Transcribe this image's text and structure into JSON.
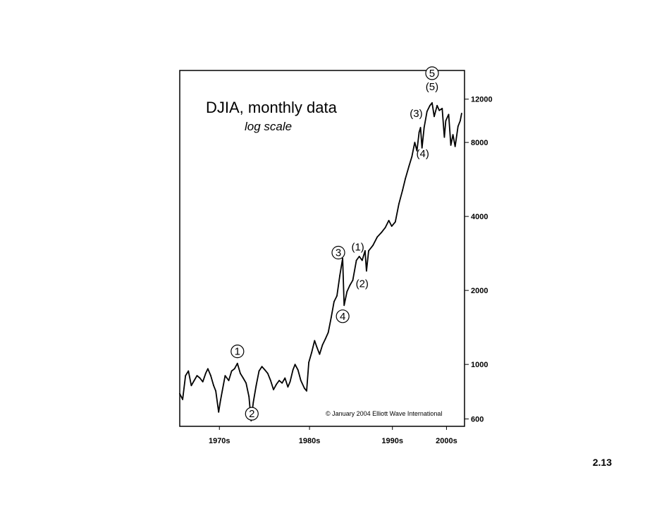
{
  "slide": {
    "number": "2.13"
  },
  "chart_data": {
    "type": "line",
    "title": "DJIA, monthly data",
    "subtitle": "log scale",
    "copyright": "© January 2004 Elliott Wave International",
    "y_scale": "log",
    "ylim": [
      560,
      15700
    ],
    "xlim": [
      1965,
      2004.5
    ],
    "y_ticks": [
      {
        "value": 600,
        "label": "600"
      },
      {
        "value": 1000,
        "label": "1000"
      },
      {
        "value": 2000,
        "label": "2000"
      },
      {
        "value": 4000,
        "label": "4000"
      },
      {
        "value": 8000,
        "label": "8000"
      },
      {
        "value": 12000,
        "label": "12000"
      }
    ],
    "x_ticks": [
      {
        "value": 1970.5,
        "label": "1970s"
      },
      {
        "value": 1983,
        "label": "1980s"
      },
      {
        "value": 1994.5,
        "label": "1990s"
      },
      {
        "value": 2002,
        "label": "2000s"
      }
    ],
    "series": [
      {
        "color": "#000000",
        "points": [
          [
            1965.0,
            760
          ],
          [
            1965.4,
            720
          ],
          [
            1965.8,
            900
          ],
          [
            1966.2,
            940
          ],
          [
            1966.6,
            820
          ],
          [
            1967.0,
            860
          ],
          [
            1967.4,
            900
          ],
          [
            1967.8,
            880
          ],
          [
            1968.2,
            850
          ],
          [
            1968.6,
            920
          ],
          [
            1968.9,
            960
          ],
          [
            1969.3,
            900
          ],
          [
            1969.7,
            820
          ],
          [
            1970.0,
            780
          ],
          [
            1970.4,
            640
          ],
          [
            1970.6,
            700
          ],
          [
            1970.9,
            780
          ],
          [
            1971.3,
            900
          ],
          [
            1971.8,
            860
          ],
          [
            1972.2,
            940
          ],
          [
            1972.6,
            960
          ],
          [
            1973.0,
            1010
          ],
          [
            1973.4,
            920
          ],
          [
            1973.8,
            880
          ],
          [
            1974.2,
            840
          ],
          [
            1974.6,
            740
          ],
          [
            1974.9,
            590
          ],
          [
            1975.2,
            700
          ],
          [
            1975.6,
            820
          ],
          [
            1976.0,
            940
          ],
          [
            1976.4,
            980
          ],
          [
            1976.8,
            950
          ],
          [
            1977.2,
            920
          ],
          [
            1977.6,
            860
          ],
          [
            1978.0,
            790
          ],
          [
            1978.4,
            830
          ],
          [
            1978.8,
            860
          ],
          [
            1979.2,
            840
          ],
          [
            1979.6,
            880
          ],
          [
            1980.0,
            810
          ],
          [
            1980.3,
            850
          ],
          [
            1980.7,
            950
          ],
          [
            1981.0,
            1000
          ],
          [
            1981.4,
            950
          ],
          [
            1981.8,
            860
          ],
          [
            1982.3,
            800
          ],
          [
            1982.6,
            780
          ],
          [
            1982.9,
            1020
          ],
          [
            1983.3,
            1120
          ],
          [
            1983.7,
            1250
          ],
          [
            1984.0,
            1180
          ],
          [
            1984.4,
            1100
          ],
          [
            1984.8,
            1200
          ],
          [
            1985.2,
            1270
          ],
          [
            1985.6,
            1350
          ],
          [
            1986.0,
            1550
          ],
          [
            1986.4,
            1800
          ],
          [
            1986.8,
            1900
          ],
          [
            1987.2,
            2300
          ],
          [
            1987.6,
            2700
          ],
          [
            1987.8,
            1740
          ],
          [
            1988.2,
            1980
          ],
          [
            1988.6,
            2100
          ],
          [
            1989.0,
            2200
          ],
          [
            1989.5,
            2650
          ],
          [
            1989.9,
            2750
          ],
          [
            1990.3,
            2650
          ],
          [
            1990.7,
            2900
          ],
          [
            1990.9,
            2400
          ],
          [
            1991.2,
            2900
          ],
          [
            1991.8,
            3050
          ],
          [
            1992.4,
            3300
          ],
          [
            1993.0,
            3450
          ],
          [
            1993.5,
            3600
          ],
          [
            1994.0,
            3850
          ],
          [
            1994.4,
            3650
          ],
          [
            1994.9,
            3800
          ],
          [
            1995.4,
            4500
          ],
          [
            1995.9,
            5100
          ],
          [
            1996.3,
            5700
          ],
          [
            1996.8,
            6400
          ],
          [
            1997.2,
            7000
          ],
          [
            1997.6,
            8000
          ],
          [
            1997.9,
            7400
          ],
          [
            1998.2,
            8800
          ],
          [
            1998.4,
            9200
          ],
          [
            1998.6,
            7600
          ],
          [
            1998.9,
            9200
          ],
          [
            1999.3,
            10700
          ],
          [
            1999.7,
            11300
          ],
          [
            2000.0,
            11600
          ],
          [
            2000.3,
            10200
          ],
          [
            2000.7,
            11300
          ],
          [
            2001.0,
            10800
          ],
          [
            2001.4,
            11000
          ],
          [
            2001.7,
            8400
          ],
          [
            2001.9,
            9800
          ],
          [
            2002.3,
            10400
          ],
          [
            2002.6,
            7800
          ],
          [
            2002.9,
            8600
          ],
          [
            2003.2,
            7700
          ],
          [
            2003.6,
            9300
          ],
          [
            2003.9,
            9800
          ],
          [
            2004.1,
            10500
          ]
        ]
      }
    ],
    "annotations": [
      {
        "label": "1",
        "circled": true,
        "x": 1973.0,
        "y": 1130
      },
      {
        "label": "2",
        "circled": true,
        "x": 1975.0,
        "y": 630
      },
      {
        "label": "3",
        "circled": true,
        "x": 1987.0,
        "y": 2850
      },
      {
        "label": "4",
        "circled": true,
        "x": 1987.6,
        "y": 1570
      },
      {
        "label": "(1)",
        "circled": false,
        "x": 1989.7,
        "y": 3000
      },
      {
        "label": "(2)",
        "circled": false,
        "x": 1990.3,
        "y": 2130
      },
      {
        "label": "(3)",
        "circled": false,
        "x": 1997.8,
        "y": 10500
      },
      {
        "label": "(4)",
        "circled": false,
        "x": 1998.7,
        "y": 7200
      },
      {
        "label": "(5)",
        "circled": false,
        "x": 2000.0,
        "y": 13500
      },
      {
        "label": "5",
        "circled": true,
        "x": 2000.0,
        "y": 15300
      }
    ]
  }
}
